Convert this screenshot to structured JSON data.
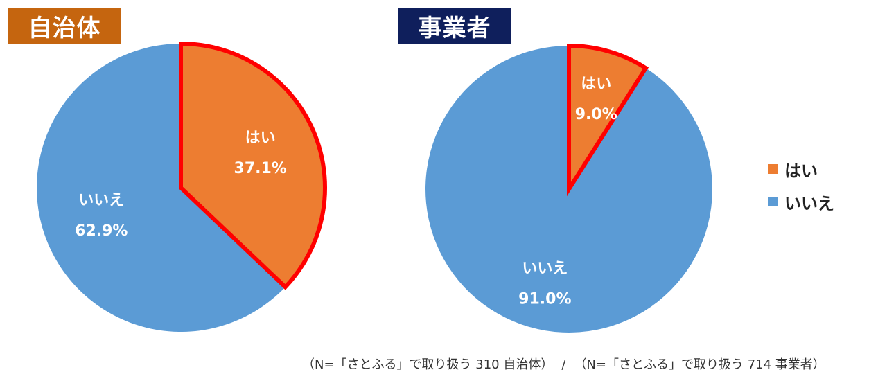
{
  "colors": {
    "yes": "#ed7d31",
    "no": "#5b9bd5",
    "highlight": "#ff0000",
    "label": "#ffffff"
  },
  "legend": [
    {
      "label": "はい",
      "color": "#ed7d31"
    },
    {
      "label": "いいえ",
      "color": "#5b9bd5"
    }
  ],
  "footnote": {
    "left": "（N=「さとふる」で取り扱う 310 自治体）",
    "separator": "/",
    "right": "（N=「さとふる」で取り扱う 714 事業者）"
  },
  "chart_data": [
    {
      "type": "pie",
      "title": "自治体",
      "title_color": "#c5650f",
      "start": "12 o'clock, clockwise",
      "highlighted_slice": "はい",
      "slices": [
        {
          "label": "はい",
          "value": 37.1,
          "display": "37.1%",
          "color": "#ed7d31"
        },
        {
          "label": "いいえ",
          "value": 62.9,
          "display": "62.9%",
          "color": "#5b9bd5"
        }
      ]
    },
    {
      "type": "pie",
      "title": "事業者",
      "title_color": "#0f1f5c",
      "start": "12 o'clock, clockwise",
      "highlighted_slice": "はい",
      "slices": [
        {
          "label": "はい",
          "value": 9.0,
          "display": "9.0%",
          "color": "#ed7d31"
        },
        {
          "label": "いいえ",
          "value": 91.0,
          "display": "91.0%",
          "color": "#5b9bd5"
        }
      ]
    }
  ]
}
